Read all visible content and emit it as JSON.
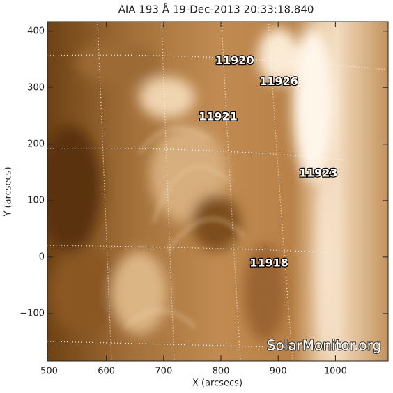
{
  "chart_data": {
    "type": "image",
    "title": "AIA 193 Å 19-Dec-2013 20:33:18.840",
    "x_label": "X (arcsecs)",
    "y_label": "Y (arcsecs)",
    "xlim": [
      497,
      1092
    ],
    "ylim": [
      -184,
      417
    ],
    "xticks": [
      500,
      600,
      700,
      800,
      900,
      1000
    ],
    "yticks": [
      400,
      300,
      200,
      100,
      0,
      {
        "value": -100,
        "label": "−100"
      }
    ],
    "annotations": [
      {
        "text": "11920",
        "x": 824,
        "y": 347
      },
      {
        "text": "11926",
        "x": 901,
        "y": 310
      },
      {
        "text": "11921",
        "x": 795,
        "y": 248
      },
      {
        "text": "11923",
        "x": 970,
        "y": 148
      },
      {
        "text": "11918",
        "x": 884,
        "y": -11
      }
    ],
    "watermark": "SolarMonitor.org"
  }
}
